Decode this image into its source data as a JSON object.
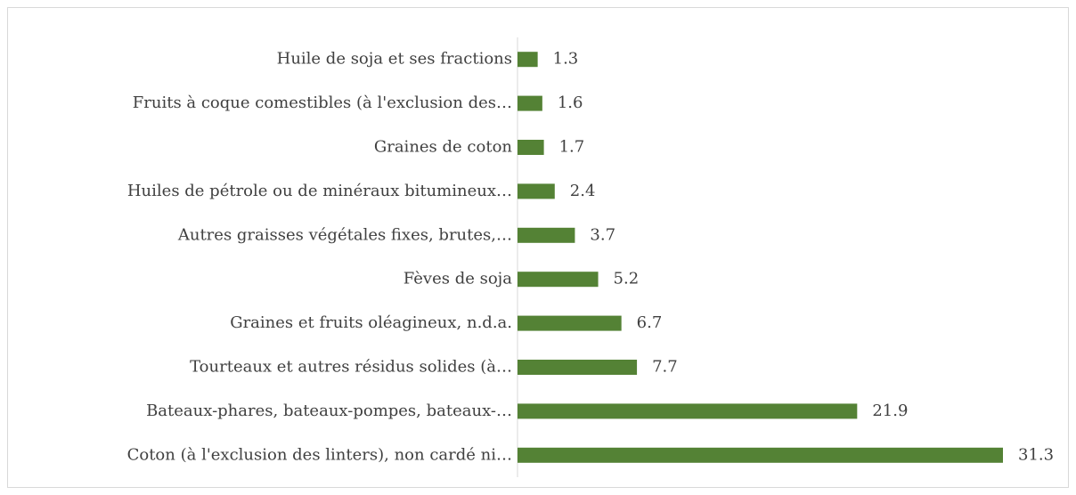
{
  "chart_data": {
    "type": "bar",
    "orientation": "horizontal",
    "categories": [
      "Huile de soja et ses fractions",
      "Fruits à coque comestibles (à l'exclusion des…",
      "Graines de coton",
      "Huiles de pétrole ou de minéraux bitumineux…",
      "Autres graisses végétales fixes, brutes,…",
      "Fèves de soja",
      "Graines et fruits oléagineux, n.d.a.",
      "Tourteaux et autres résidus solides (à…",
      "Bateaux-phares, bateaux-pompes, bateaux-…",
      "Coton (à l'exclusion des linters), non cardé ni…"
    ],
    "values": [
      1.3,
      1.6,
      1.7,
      2.4,
      3.7,
      5.2,
      6.7,
      7.7,
      21.9,
      31.3
    ],
    "color": "#548235"
  }
}
